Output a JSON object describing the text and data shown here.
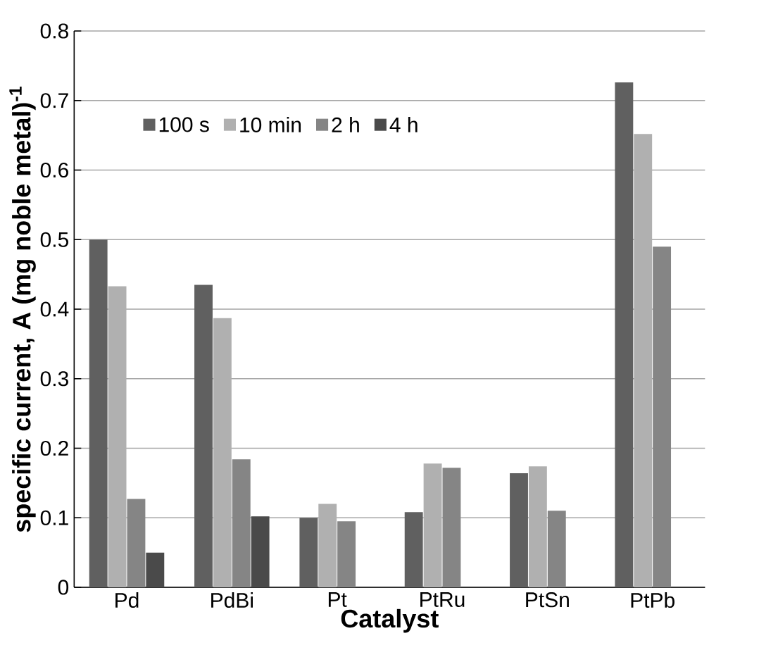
{
  "chart_data": {
    "type": "bar",
    "xlabel": "Catalyst",
    "ylabel": "specific current, A (mg noble metal)$^{-1}$",
    "categories": [
      "Pd",
      "PdBi",
      "Pt",
      "PtRu",
      "PtSn",
      "PtPb"
    ],
    "series": [
      {
        "name": "100 s",
        "color": "#606060",
        "values": [
          0.5,
          0.435,
          0.1,
          0.108,
          0.164,
          0.726
        ]
      },
      {
        "name": "10 min",
        "color": "#b0b0b0",
        "values": [
          0.433,
          0.387,
          0.12,
          0.178,
          0.174,
          0.652
        ]
      },
      {
        "name": "2 h",
        "color": "#858585",
        "values": [
          0.127,
          0.184,
          0.095,
          0.172,
          0.11,
          0.49
        ]
      },
      {
        "name": "4 h",
        "color": "#4a4a4a",
        "values": [
          0.05,
          0.102,
          null,
          null,
          null,
          null
        ]
      }
    ],
    "ylim": [
      0,
      0.8
    ],
    "yticks": [
      0,
      0.1,
      0.2,
      0.3,
      0.4,
      0.5,
      0.6,
      0.7,
      0.8
    ],
    "grid": "y",
    "legend": "top"
  }
}
